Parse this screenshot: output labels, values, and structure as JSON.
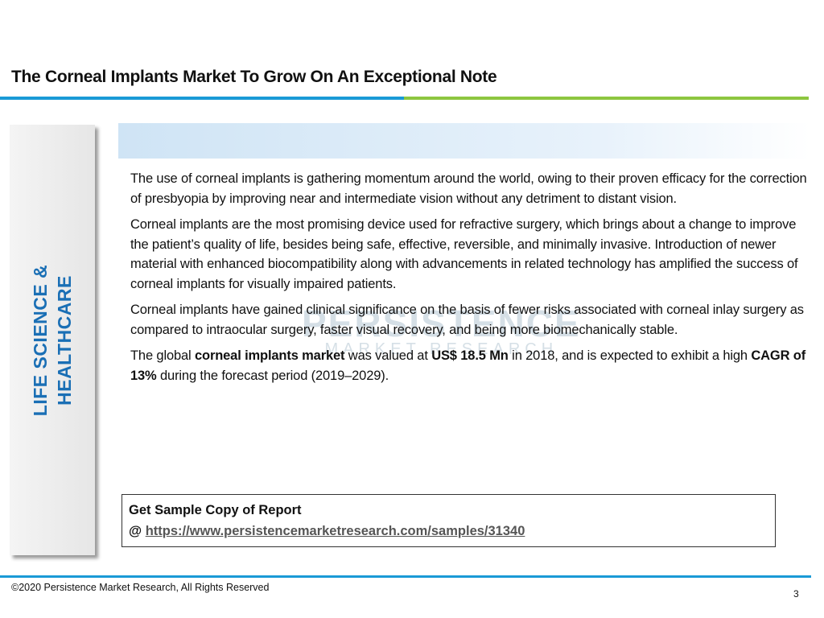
{
  "header": {
    "title": "The Corneal Implants Market To Grow On An Exceptional Note"
  },
  "sidebar": {
    "lines": [
      "LIFE SCIENCE &",
      "HEALTHCARE"
    ]
  },
  "watermark": {
    "name": "PERSISTENCE",
    "tagline": "MARKET RESEARCH"
  },
  "paragraphs": [
    [
      {
        "text": "The use of corneal implants is gathering momentum around the world, owing to their proven efficacy for the correction of presbyopia by improving near and intermediate vision without any detriment to distant vision.",
        "bold": false
      }
    ],
    [
      {
        "text": "Corneal implants are the most promising device used for refractive surgery, which brings about a change to improve the patient’s quality of life, besides being safe, effective, reversible, and minimally invasive. Introduction of newer material with enhanced biocompatibility along with advancements in related technology has amplified the success of corneal implants for visually impaired patients.",
        "bold": false
      }
    ],
    [
      {
        "text": "Corneal implants have gained clinical significance on the basis of fewer risks associated with corneal inlay surgery as compared to intraocular surgery, faster visual recovery, and being more biomechanically stable.",
        "bold": false
      }
    ],
    [
      {
        "text": "The global ",
        "bold": false
      },
      {
        "text": "corneal implants market",
        "bold": true
      },
      {
        "text": " was valued at ",
        "bold": false
      },
      {
        "text": "US$ 18.5 Mn",
        "bold": true
      },
      {
        "text": " in 2018, and is expected to exhibit a high ",
        "bold": false
      },
      {
        "text": "CAGR of 13%",
        "bold": true
      },
      {
        "text": " during the forecast period (2019–2029).",
        "bold": false
      }
    ]
  ],
  "sample": {
    "heading": "Get Sample Copy of Report",
    "prefix": "@",
    "link": "https://www.persistencemarketresearch.com/samples/31340"
  },
  "footer": {
    "copyright": "©2020 Persistence Market Research, All Rights Reserved",
    "page": "3"
  }
}
